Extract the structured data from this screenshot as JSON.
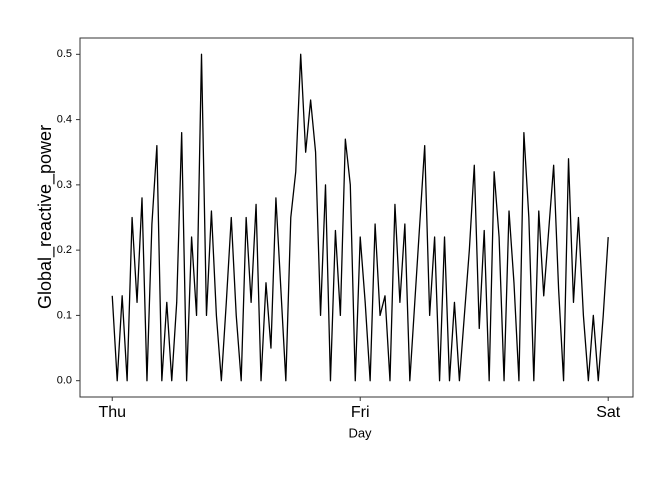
{
  "chart_data": {
    "type": "line",
    "x_label": "Day",
    "y_label": "Global_reactive_power",
    "x": [
      0,
      0.02,
      0.04,
      0.06,
      0.08,
      0.1,
      0.12,
      0.14,
      0.16,
      0.18,
      0.2,
      0.22,
      0.24,
      0.26,
      0.28,
      0.3,
      0.32,
      0.34,
      0.36,
      0.38,
      0.4,
      0.42,
      0.44,
      0.46,
      0.48,
      0.5,
      0.52,
      0.54,
      0.56,
      0.58,
      0.6,
      0.62,
      0.64,
      0.66,
      0.68,
      0.7,
      0.72,
      0.74,
      0.76,
      0.78,
      0.8,
      0.82,
      0.84,
      0.86,
      0.88,
      0.9,
      0.92,
      0.94,
      0.96,
      0.98,
      1,
      1.02,
      1.04,
      1.06,
      1.08,
      1.1,
      1.12,
      1.14,
      1.16,
      1.18,
      1.2,
      1.22,
      1.24,
      1.26,
      1.28,
      1.3,
      1.32,
      1.34,
      1.36,
      1.38,
      1.4,
      1.42,
      1.44,
      1.46,
      1.48,
      1.5,
      1.52,
      1.54,
      1.56,
      1.58,
      1.6,
      1.62,
      1.64,
      1.66,
      1.68,
      1.7,
      1.72,
      1.74,
      1.76,
      1.78,
      1.8,
      1.82,
      1.84,
      1.86,
      1.88,
      1.9,
      1.92,
      1.94,
      1.96,
      1.98,
      2
    ],
    "values": [
      0.13,
      0,
      0.13,
      0,
      0.25,
      0.12,
      0.28,
      0,
      0.24,
      0.36,
      0,
      0.12,
      0,
      0.12,
      0.38,
      0,
      0.22,
      0.1,
      0.5,
      0.1,
      0.26,
      0.1,
      0,
      0.12,
      0.25,
      0.1,
      0,
      0.25,
      0.12,
      0.27,
      0,
      0.15,
      0.05,
      0.28,
      0.14,
      0,
      0.25,
      0.32,
      0.5,
      0.35,
      0.43,
      0.35,
      0.1,
      0.3,
      0,
      0.23,
      0.1,
      0.37,
      0.3,
      0,
      0.22,
      0.12,
      0,
      0.24,
      0.1,
      0.13,
      0,
      0.27,
      0.12,
      0.24,
      0,
      0.12,
      0.24,
      0.36,
      0.1,
      0.22,
      0,
      0.22,
      0,
      0.12,
      0,
      0.1,
      0.2,
      0.33,
      0.08,
      0.23,
      0,
      0.32,
      0.22,
      0,
      0.26,
      0.15,
      0,
      0.38,
      0.25,
      0,
      0.26,
      0.13,
      0.23,
      0.33,
      0.14,
      0,
      0.34,
      0.12,
      0.25,
      0.1,
      0,
      0.1,
      0,
      0.1,
      0.22
    ],
    "color": "#000000",
    "xlim": [
      -0.13,
      2.1
    ],
    "xticks": [
      {
        "value": 0,
        "label": "Thu"
      },
      {
        "value": 1,
        "label": "Fri"
      },
      {
        "value": 2,
        "label": "Sat"
      }
    ],
    "ylim": [
      -0.025,
      0.525
    ],
    "yticks": [
      {
        "value": 0,
        "label": "0.0"
      },
      0.1,
      0.2,
      0.3,
      0.4,
      0.5
    ],
    "grid": false
  }
}
